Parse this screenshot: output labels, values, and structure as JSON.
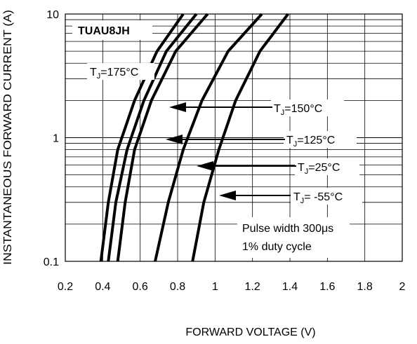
{
  "chart_data": {
    "type": "line",
    "title": "TUAU8JH",
    "xlabel": "FORWARD VOLTAGE (V)",
    "ylabel": "INSTANTANEOUS FORWARD CURRENT (A)",
    "xlim": [
      0.2,
      2.0
    ],
    "ylim": [
      0.1,
      10
    ],
    "yscale": "log",
    "grid": true,
    "x_ticks": [
      "0.2",
      "0.4",
      "0.6",
      "0.8",
      "1",
      "1.2",
      "1.4",
      "1.6",
      "1.8",
      "2"
    ],
    "y_ticks": [
      "0.1",
      "1",
      "10"
    ],
    "series": [
      {
        "name": "TJ=175°C",
        "sub": "J",
        "pre": "T",
        "post": "=175°C",
        "points": [
          [
            0.39,
            0.1
          ],
          [
            0.43,
            0.3
          ],
          [
            0.48,
            0.8
          ],
          [
            0.57,
            2.0
          ],
          [
            0.69,
            5.0
          ],
          [
            0.83,
            10
          ]
        ]
      },
      {
        "name": "TJ=150°C",
        "sub": "J",
        "pre": "T",
        "post": "=150°C",
        "points": [
          [
            0.43,
            0.1
          ],
          [
            0.47,
            0.3
          ],
          [
            0.53,
            0.8
          ],
          [
            0.62,
            2.0
          ],
          [
            0.74,
            5.0
          ],
          [
            0.9,
            10
          ]
        ]
      },
      {
        "name": "TJ=125°C",
        "sub": "J",
        "pre": "T",
        "post": "=125°C",
        "points": [
          [
            0.48,
            0.1
          ],
          [
            0.52,
            0.3
          ],
          [
            0.57,
            0.8
          ],
          [
            0.66,
            2.0
          ],
          [
            0.79,
            5.0
          ],
          [
            0.96,
            10
          ]
        ]
      },
      {
        "name": "TJ=25°C",
        "sub": "J",
        "pre": "T",
        "post": "=25°C",
        "points": [
          [
            0.68,
            0.1
          ],
          [
            0.75,
            0.3
          ],
          [
            0.83,
            0.8
          ],
          [
            0.93,
            2.0
          ],
          [
            1.07,
            5.0
          ],
          [
            1.25,
            10
          ]
        ]
      },
      {
        "name": "TJ=-55°C",
        "sub": "J",
        "pre": "T",
        "post": "= -55°C",
        "points": [
          [
            0.88,
            0.1
          ],
          [
            0.94,
            0.3
          ],
          [
            1.02,
            0.8
          ],
          [
            1.11,
            2.0
          ],
          [
            1.24,
            5.0
          ],
          [
            1.39,
            10
          ]
        ]
      }
    ],
    "notes": [
      "Pulse width 300μs",
      "1% duty cycle"
    ]
  }
}
